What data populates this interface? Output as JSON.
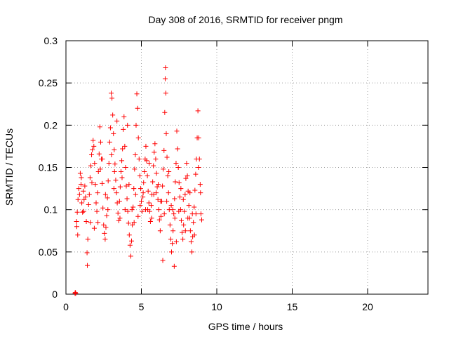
{
  "chart_data": {
    "type": "scatter",
    "title": "Day 308 of 2016, SRMTID for receiver pngm",
    "xlabel": "GPS time / hours",
    "ylabel": "SRMTID / TECUs",
    "xlim": [
      0,
      24
    ],
    "ylim": [
      0,
      0.3
    ],
    "x_ticks": [
      0,
      5,
      10,
      15,
      20
    ],
    "x_tick_labels": [
      "0",
      "5",
      "10",
      "15",
      "20"
    ],
    "y_ticks": [
      0,
      0.05,
      0.1,
      0.15,
      0.2,
      0.25,
      0.3
    ],
    "y_tick_labels": [
      "0",
      "0.05",
      "0.1",
      "0.15",
      "0.2",
      "0.25",
      "0.3"
    ],
    "grid": true,
    "marker": "+",
    "color": "#ff0000",
    "series": [
      {
        "name": "SRMTID",
        "points": [
          [
            0.6,
            0.001
          ],
          [
            0.62,
            0.002
          ],
          [
            0.65,
            0.001
          ],
          [
            0.7,
            0.086
          ],
          [
            0.72,
            0.08
          ],
          [
            0.75,
            0.097
          ],
          [
            0.8,
            0.112
          ],
          [
            0.85,
            0.125
          ],
          [
            0.9,
            0.118
          ],
          [
            0.95,
            0.143
          ],
          [
            1.0,
            0.13
          ],
          [
            1.05,
            0.108
          ],
          [
            1.1,
            0.097
          ],
          [
            1.15,
            0.122
          ],
          [
            1.2,
            0.112
          ],
          [
            1.25,
            0.128
          ],
          [
            1.3,
            0.115
          ],
          [
            1.35,
            0.086
          ],
          [
            1.4,
            0.049
          ],
          [
            1.42,
            0.034
          ],
          [
            1.45,
            0.065
          ],
          [
            1.5,
            0.106
          ],
          [
            1.55,
            0.118
          ],
          [
            1.6,
            0.138
          ],
          [
            1.65,
            0.152
          ],
          [
            1.7,
            0.165
          ],
          [
            1.75,
            0.171
          ],
          [
            1.8,
            0.182
          ],
          [
            1.85,
            0.175
          ],
          [
            1.9,
            0.155
          ],
          [
            1.95,
            0.13
          ],
          [
            2.0,
            0.108
          ],
          [
            2.05,
            0.098
          ],
          [
            2.1,
            0.12
          ],
          [
            2.15,
            0.145
          ],
          [
            2.2,
            0.166
          ],
          [
            2.25,
            0.198
          ],
          [
            2.3,
            0.18
          ],
          [
            2.35,
            0.16
          ],
          [
            2.4,
            0.131
          ],
          [
            2.45,
            0.102
          ],
          [
            2.5,
            0.082
          ],
          [
            2.55,
            0.072
          ],
          [
            2.6,
            0.065
          ],
          [
            2.65,
            0.079
          ],
          [
            2.7,
            0.093
          ],
          [
            2.75,
            0.114
          ],
          [
            2.8,
            0.134
          ],
          [
            2.85,
            0.155
          ],
          [
            2.9,
            0.18
          ],
          [
            2.95,
            0.197
          ],
          [
            3.0,
            0.238
          ],
          [
            3.05,
            0.232
          ],
          [
            3.1,
            0.212
          ],
          [
            3.15,
            0.19
          ],
          [
            3.2,
            0.171
          ],
          [
            3.25,
            0.154
          ],
          [
            3.3,
            0.135
          ],
          [
            3.35,
            0.12
          ],
          [
            3.4,
            0.108
          ],
          [
            3.45,
            0.096
          ],
          [
            3.5,
            0.087
          ],
          [
            3.55,
            0.11
          ],
          [
            3.6,
            0.127
          ],
          [
            3.65,
            0.145
          ],
          [
            3.7,
            0.158
          ],
          [
            3.75,
            0.172
          ],
          [
            3.8,
            0.195
          ],
          [
            3.85,
            0.21
          ],
          [
            3.9,
            0.175
          ],
          [
            3.95,
            0.15
          ],
          [
            4.0,
            0.128
          ],
          [
            4.05,
            0.113
          ],
          [
            4.1,
            0.098
          ],
          [
            4.15,
            0.084
          ],
          [
            4.2,
            0.07
          ],
          [
            4.25,
            0.058
          ],
          [
            4.3,
            0.045
          ],
          [
            4.35,
            0.063
          ],
          [
            4.4,
            0.082
          ],
          [
            4.45,
            0.103
          ],
          [
            4.5,
            0.125
          ],
          [
            4.55,
            0.148
          ],
          [
            4.6,
            0.165
          ],
          [
            4.65,
            0.2
          ],
          [
            4.7,
            0.237
          ],
          [
            4.75,
            0.22
          ],
          [
            4.8,
            0.185
          ],
          [
            4.85,
            0.16
          ],
          [
            4.9,
            0.14
          ],
          [
            4.95,
            0.125
          ],
          [
            5.0,
            0.11
          ],
          [
            5.05,
            0.098
          ],
          [
            5.1,
            0.115
          ],
          [
            5.15,
            0.132
          ],
          [
            5.2,
            0.145
          ],
          [
            5.25,
            0.16
          ],
          [
            5.3,
            0.175
          ],
          [
            5.35,
            0.158
          ],
          [
            5.4,
            0.14
          ],
          [
            5.45,
            0.122
          ],
          [
            5.5,
            0.108
          ],
          [
            5.55,
            0.098
          ],
          [
            5.6,
            0.086
          ],
          [
            5.65,
            0.105
          ],
          [
            5.7,
            0.118
          ],
          [
            5.75,
            0.133
          ],
          [
            5.8,
            0.152
          ],
          [
            5.85,
            0.168
          ],
          [
            5.9,
            0.178
          ],
          [
            5.95,
            0.16
          ],
          [
            6.0,
            0.143
          ],
          [
            6.05,
            0.127
          ],
          [
            6.1,
            0.112
          ],
          [
            6.15,
            0.1
          ],
          [
            6.2,
            0.088
          ],
          [
            6.25,
            0.075
          ],
          [
            6.3,
            0.092
          ],
          [
            6.35,
            0.11
          ],
          [
            6.4,
            0.128
          ],
          [
            6.45,
            0.148
          ],
          [
            6.5,
            0.17
          ],
          [
            6.55,
            0.215
          ],
          [
            6.58,
            0.255
          ],
          [
            6.6,
            0.268
          ],
          [
            6.62,
            0.238
          ],
          [
            6.65,
            0.19
          ],
          [
            6.7,
            0.162
          ],
          [
            6.75,
            0.14
          ],
          [
            6.8,
            0.12
          ],
          [
            6.85,
            0.1
          ],
          [
            6.9,
            0.082
          ],
          [
            6.95,
            0.065
          ],
          [
            7.0,
            0.05
          ],
          [
            7.05,
            0.06
          ],
          [
            7.1,
            0.075
          ],
          [
            7.15,
            0.095
          ],
          [
            7.2,
            0.113
          ],
          [
            7.25,
            0.133
          ],
          [
            7.3,
            0.155
          ],
          [
            7.35,
            0.193
          ],
          [
            7.4,
            0.172
          ],
          [
            7.45,
            0.15
          ],
          [
            7.5,
            0.132
          ],
          [
            7.55,
            0.115
          ],
          [
            7.6,
            0.1
          ],
          [
            7.65,
            0.087
          ],
          [
            7.7,
            0.073
          ],
          [
            7.75,
            0.065
          ],
          [
            7.8,
            0.082
          ],
          [
            7.85,
            0.098
          ],
          [
            7.9,
            0.118
          ],
          [
            7.95,
            0.137
          ],
          [
            8.0,
            0.155
          ],
          [
            8.05,
            0.14
          ],
          [
            8.1,
            0.122
          ],
          [
            8.15,
            0.105
          ],
          [
            8.2,
            0.09
          ],
          [
            8.25,
            0.075
          ],
          [
            8.3,
            0.062
          ],
          [
            8.35,
            0.05
          ],
          [
            8.4,
            0.068
          ],
          [
            8.45,
            0.085
          ],
          [
            8.5,
            0.103
          ],
          [
            8.55,
            0.123
          ],
          [
            8.6,
            0.142
          ],
          [
            8.65,
            0.16
          ],
          [
            8.7,
            0.185
          ],
          [
            8.75,
            0.217
          ],
          [
            8.8,
            0.185
          ],
          [
            8.85,
            0.16
          ],
          [
            8.9,
            0.13
          ],
          [
            8.95,
            0.095
          ],
          [
            9.0,
            0.088
          ],
          [
            0.78,
            0.07
          ],
          [
            1.02,
            0.138
          ],
          [
            1.18,
            0.098
          ],
          [
            1.62,
            0.085
          ],
          [
            1.88,
            0.078
          ],
          [
            2.12,
            0.085
          ],
          [
            2.28,
            0.148
          ],
          [
            2.62,
            0.118
          ],
          [
            2.78,
            0.1
          ],
          [
            3.02,
            0.165
          ],
          [
            3.18,
            0.125
          ],
          [
            3.38,
            0.205
          ],
          [
            3.58,
            0.09
          ],
          [
            3.72,
            0.138
          ],
          [
            3.92,
            0.1
          ],
          [
            4.08,
            0.2
          ],
          [
            4.18,
            0.13
          ],
          [
            4.38,
            0.1
          ],
          [
            4.52,
            0.085
          ],
          [
            4.62,
            0.118
          ],
          [
            4.78,
            0.092
          ],
          [
            4.92,
            0.105
          ],
          [
            5.12,
            0.12
          ],
          [
            5.28,
            0.1
          ],
          [
            5.42,
            0.1
          ],
          [
            5.52,
            0.155
          ],
          [
            5.68,
            0.09
          ],
          [
            5.82,
            0.118
          ],
          [
            5.98,
            0.12
          ],
          [
            6.12,
            0.13
          ],
          [
            6.28,
            0.11
          ],
          [
            6.42,
            0.04
          ],
          [
            6.52,
            0.095
          ],
          [
            6.68,
            0.11
          ],
          [
            6.82,
            0.145
          ],
          [
            6.98,
            0.105
          ],
          [
            7.08,
            0.1
          ],
          [
            7.22,
            0.09
          ],
          [
            7.32,
            0.062
          ],
          [
            7.48,
            0.098
          ],
          [
            7.62,
            0.125
          ],
          [
            7.78,
            0.112
          ],
          [
            7.92,
            0.075
          ],
          [
            8.08,
            0.09
          ],
          [
            8.22,
            0.12
          ],
          [
            8.38,
            0.095
          ],
          [
            8.52,
            0.07
          ],
          [
            8.62,
            0.095
          ],
          [
            8.78,
            0.15
          ],
          [
            8.92,
            0.12
          ],
          [
            7.18,
            0.033
          ],
          [
            3.22,
            0.145
          ],
          [
            2.42,
            0.16
          ],
          [
            1.72,
            0.132
          ]
        ]
      }
    ]
  }
}
